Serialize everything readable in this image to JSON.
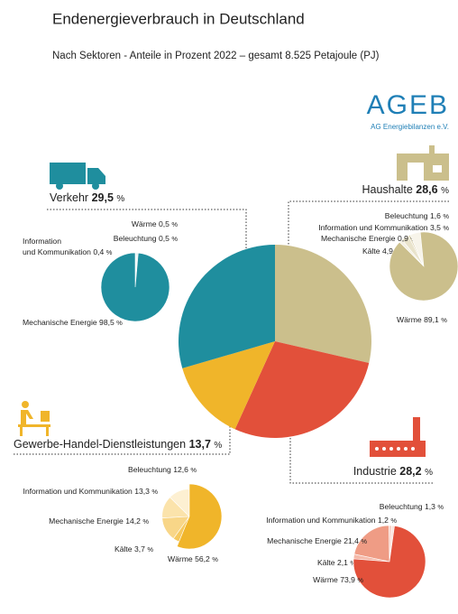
{
  "header": {
    "title": "Endenergieverbrauch in Deutschland",
    "subtitle": "Nach Sektoren - Anteile in Prozent 2022 – gesamt 8.525 Petajoule (PJ)"
  },
  "logo": {
    "name": "AGEB",
    "subtitle": "AG Energiebilanzen e.V."
  },
  "chart_data": [
    {
      "type": "pie",
      "unit": "%",
      "categories": [
        "Haushalte",
        "Industrie",
        "Gewerbe-Handel-Dienstleistungen",
        "Verkehr"
      ],
      "values": [
        28.6,
        28.2,
        13.7,
        29.5
      ],
      "value_labels": [
        "28,6",
        "28,2",
        "13,7",
        "29,5"
      ],
      "colors": [
        "#cbbf8c",
        "#e2503a",
        "#f0b52a",
        "#1f8e9e"
      ]
    },
    {
      "type": "pie",
      "unit": "%",
      "categories": [
        "Wärme",
        "Beleuchtung",
        "Information und Kommunikation",
        "Mechanische Energie"
      ],
      "values": [
        0.5,
        0.5,
        0.4,
        98.5
      ],
      "value_labels": [
        "0,5",
        "0,5",
        "0,4",
        "98,5"
      ],
      "colors": [
        "#e6f2f4",
        "#c2e1e6",
        "#9dcdd5",
        "#1f8e9e"
      ]
    },
    {
      "type": "pie",
      "unit": "%",
      "categories": [
        "Beleuchtung",
        "Information und Kommunikation",
        "Mechanische Energie",
        "Kälte",
        "Wärme"
      ],
      "values": [
        1.6,
        3.5,
        0.9,
        4.9,
        89.1
      ],
      "value_labels": [
        "1,6",
        "3,5",
        "0,9",
        "4,9",
        "89,1"
      ],
      "colors": [
        "#f4f0e2",
        "#e9e3cb",
        "#dfd6b3",
        "#f7f4ea",
        "#cbbf8c"
      ]
    },
    {
      "type": "pie",
      "unit": "%",
      "categories": [
        "Beleuchtung",
        "Information und Kommunikation",
        "Mechanische Energie",
        "Kälte",
        "Wärme"
      ],
      "values": [
        12.6,
        13.3,
        14.2,
        3.7,
        56.2
      ],
      "value_labels": [
        "12,6",
        "13,3",
        "14,2",
        "3,7",
        "56,2"
      ],
      "colors": [
        "#fdf0d2",
        "#fbe3ab",
        "#f8d688",
        "#f6c95f",
        "#f0b52a"
      ]
    },
    {
      "type": "pie",
      "unit": "%",
      "categories": [
        "Beleuchtung",
        "Information und Kommunikation",
        "Mechanische Energie",
        "Kälte",
        "Wärme"
      ],
      "values": [
        1.3,
        1.2,
        21.4,
        2.1,
        73.9
      ],
      "value_labels": [
        "1,3",
        "1,2",
        "21,4",
        "2,1",
        "73,9"
      ],
      "colors": [
        "#fbe3dc",
        "#f8d0c5",
        "#ef9c85",
        "#f5b9a9",
        "#e2503a"
      ]
    }
  ]
}
